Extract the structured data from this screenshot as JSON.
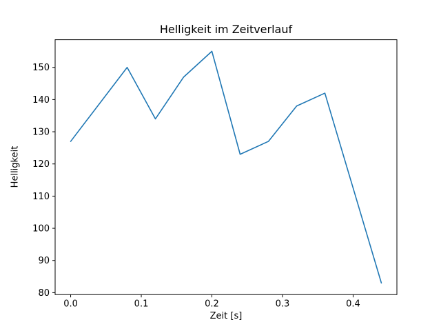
{
  "chart_data": {
    "type": "line",
    "title": "Helligkeit im Zeitverlauf",
    "xlabel": "Zeit [s]",
    "ylabel": "Helligkeit",
    "x": [
      0.0,
      0.08,
      0.12,
      0.16,
      0.2,
      0.24,
      0.28,
      0.32,
      0.36,
      0.44
    ],
    "y": [
      127,
      150,
      134,
      147,
      155,
      123,
      127,
      138,
      142,
      83
    ],
    "xlim": [
      -0.022,
      0.462
    ],
    "ylim": [
      79.4,
      158.6
    ],
    "xticks": [
      0.0,
      0.1,
      0.2,
      0.3,
      0.4
    ],
    "xtick_labels": [
      "0.0",
      "0.1",
      "0.2",
      "0.3",
      "0.4"
    ],
    "yticks": [
      80,
      90,
      100,
      110,
      120,
      130,
      140,
      150
    ],
    "ytick_labels": [
      "80",
      "90",
      "100",
      "110",
      "120",
      "130",
      "140",
      "150"
    ],
    "line_color": "#1f77b4",
    "axis_color": "#000000",
    "background_color": "#ffffff",
    "grid": false,
    "legend": null
  }
}
